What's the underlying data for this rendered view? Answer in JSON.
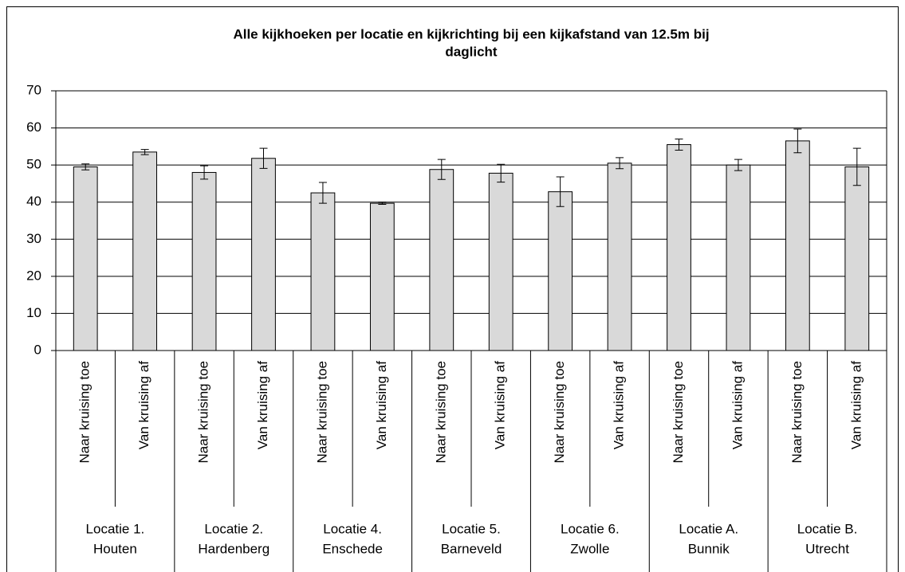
{
  "chart_data": {
    "type": "bar",
    "title": [
      "Alle kijkhoeken per locatie en kijkrichting bij een kijkafstand van 12.5m bij",
      "daglicht"
    ],
    "categories": [
      "Naar kruising toe",
      "Van kruising af",
      "Naar kruising toe",
      "Van kruising af",
      "Naar kruising toe",
      "Van kruising af",
      "Naar kruising toe",
      "Van kruising af",
      "Naar kruising toe",
      "Van kruising af",
      "Naar kruising toe",
      "Van kruising af",
      "Naar kruising toe",
      "Van kruising af"
    ],
    "groups": [
      [
        "Locatie 1.",
        "Houten"
      ],
      [
        "Locatie 2.",
        "Hardenberg"
      ],
      [
        "Locatie 4.",
        "Enschede"
      ],
      [
        "Locatie 5.",
        "Barneveld"
      ],
      [
        "Locatie 6.",
        "Zwolle"
      ],
      [
        "Locatie A.",
        "Bunnik"
      ],
      [
        "Locatie B.",
        "Utrecht"
      ]
    ],
    "series": [
      {
        "color": "#d9d9d9",
        "values": [
          49.5,
          53.5,
          48,
          51.8,
          42.5,
          39.7,
          48.8,
          47.8,
          42.8,
          50.5,
          55.5,
          50,
          56.5,
          49.5
        ],
        "errors": [
          0.8,
          0.7,
          1.8,
          2.7,
          2.8,
          0.3,
          2.7,
          2.4,
          4,
          1.5,
          1.5,
          1.5,
          3.2,
          5
        ]
      }
    ],
    "ylim": [
      0,
      70
    ],
    "yticks": [
      0,
      10,
      20,
      30,
      40,
      50,
      60,
      70
    ],
    "grid": true
  }
}
